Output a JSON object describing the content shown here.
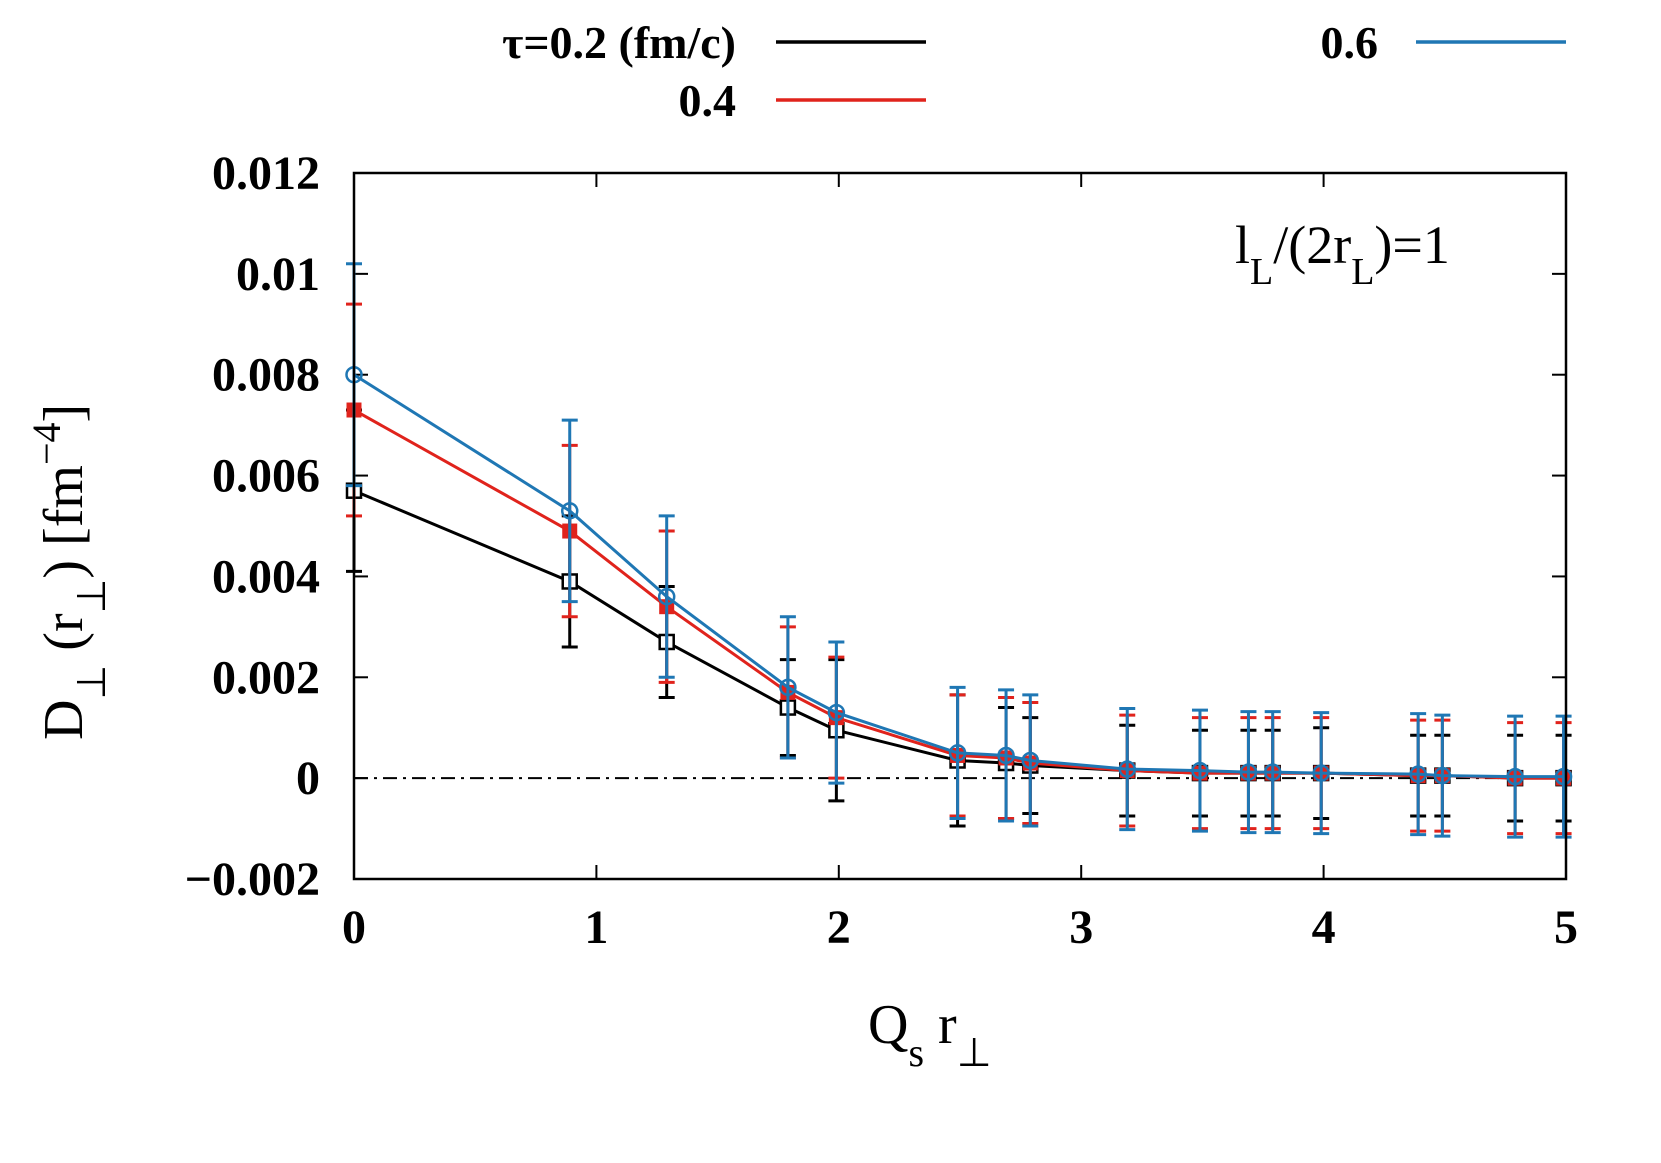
{
  "chart_data": {
    "type": "line",
    "xlabel_main": "Q",
    "xlabel_sub": "s",
    "xlabel_tail": " r",
    "xlabel_tail_sub": "⊥",
    "ylabel_main": "D",
    "ylabel_sub": "⊥",
    "ylabel_mid": " (r",
    "ylabel_mid_sub": "⊥",
    "ylabel_tail": ") [fm",
    "ylabel_sup": "−4",
    "ylabel_end": "]",
    "annotation_main": "l",
    "annotation_sub1": "L",
    "annotation_mid": "/(2r",
    "annotation_sub2": "L",
    "annotation_tail": ")=1",
    "xlim": [
      0,
      5
    ],
    "ylim": [
      -0.002,
      0.012
    ],
    "xticks": [
      0,
      1,
      2,
      3,
      4,
      5
    ],
    "xtick_labels": [
      "0",
      "1",
      "2",
      "3",
      "4",
      "5"
    ],
    "yticks": [
      -0.002,
      0,
      0.002,
      0.004,
      0.006,
      0.008,
      0.01,
      0.012
    ],
    "ytick_labels": [
      "−0.002",
      "0",
      "0.002",
      "0.004",
      "0.006",
      "0.008",
      "0.01",
      "0.012"
    ],
    "reference_line_y": 0,
    "legend_placement": "top, outside plot",
    "x": [
      0,
      0.89,
      1.29,
      1.79,
      1.99,
      2.49,
      2.69,
      2.79,
      3.19,
      3.49,
      3.69,
      3.79,
      3.99,
      4.39,
      4.49,
      4.79,
      4.99
    ],
    "series": [
      {
        "name": "τ=0.2 (fm/c)",
        "color": "#000000",
        "marker": "open-square",
        "values": [
          0.0057,
          0.0039,
          0.0027,
          0.0014,
          0.00095,
          0.00035,
          0.0003,
          0.00025,
          0.00015,
          0.0001,
          0.0001,
          0.0001,
          0.0001,
          5e-05,
          5e-05,
          0.0,
          0.0
        ],
        "errors": [
          0.0016,
          0.0013,
          0.0011,
          0.00095,
          0.0014,
          0.0013,
          0.0011,
          0.00095,
          0.0009,
          0.00085,
          0.00085,
          0.00085,
          0.0009,
          0.0008,
          0.0008,
          0.00085,
          0.00085
        ]
      },
      {
        "name": "0.4",
        "color": "#e0231c",
        "marker": "filled-square",
        "values": [
          0.0073,
          0.0049,
          0.0034,
          0.0017,
          0.0012,
          0.00045,
          0.0004,
          0.0003,
          0.00015,
          0.0001,
          0.0001,
          0.0001,
          0.0001,
          5e-05,
          5e-05,
          0.0,
          0.0
        ],
        "errors": [
          0.0021,
          0.0017,
          0.0015,
          0.0013,
          0.0012,
          0.0012,
          0.0012,
          0.0012,
          0.0011,
          0.0011,
          0.0011,
          0.0011,
          0.0011,
          0.0011,
          0.0011,
          0.0011,
          0.0011
        ]
      },
      {
        "name": "0.6",
        "color": "#1f77b4",
        "marker": "open-circle",
        "values": [
          0.008,
          0.0053,
          0.0036,
          0.0018,
          0.0013,
          0.0005,
          0.00045,
          0.00035,
          0.00018,
          0.00015,
          0.00012,
          0.00012,
          0.0001,
          8e-05,
          5e-05,
          3e-05,
          3e-05
        ],
        "errors": [
          0.0022,
          0.0018,
          0.0016,
          0.0014,
          0.0014,
          0.0013,
          0.0013,
          0.0013,
          0.0012,
          0.0012,
          0.0012,
          0.0012,
          0.0012,
          0.0012,
          0.0012,
          0.0012,
          0.0012
        ]
      }
    ]
  }
}
